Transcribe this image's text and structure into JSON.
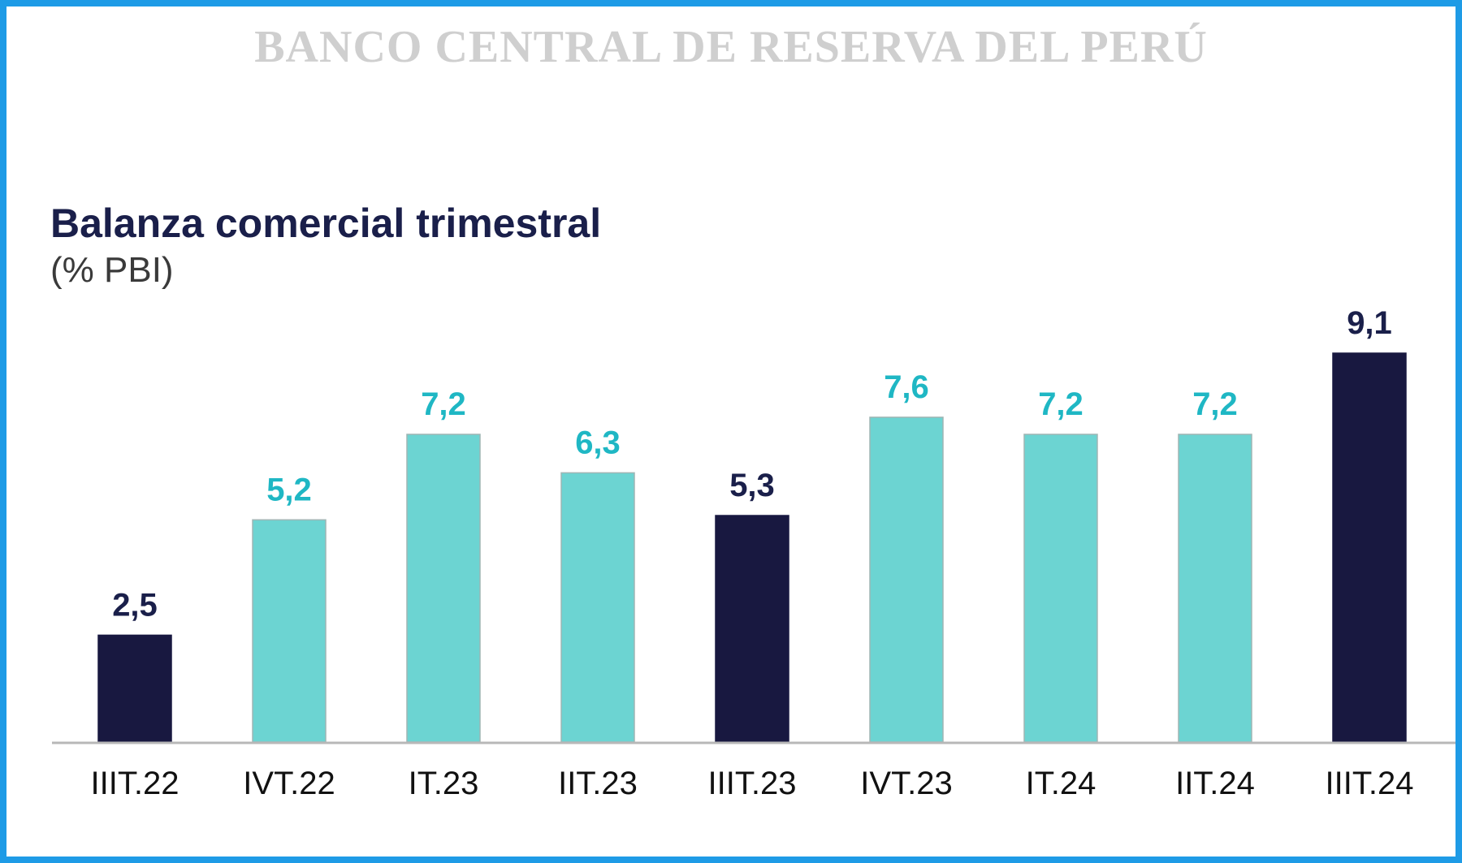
{
  "header": {
    "organization": "BANCO CENTRAL DE RESERVA DEL PERÚ"
  },
  "colors": {
    "frame_border": "#1e9be6",
    "highlight_bar": "#181840",
    "regular_bar": "#6cd4d2",
    "highlight_label": "#1a1f4a",
    "regular_label": "#1fb7c4",
    "axis_line": "#b8b8b8"
  },
  "chart_data": {
    "type": "bar",
    "title": "Balanza comercial trimestral",
    "subtitle": "(% PBI)",
    "categories": [
      "IIIT.22",
      "IVT.22",
      "IT.23",
      "IIT.23",
      "IIIT.23",
      "IVT.23",
      "IT.24",
      "IIT.24",
      "IIIT.24"
    ],
    "values": [
      2.5,
      5.2,
      7.2,
      6.3,
      5.3,
      7.6,
      7.2,
      7.2,
      9.1
    ],
    "value_labels": [
      "2,5",
      "5,2",
      "7,2",
      "6,3",
      "5,3",
      "7,6",
      "7,2",
      "7,2",
      "9,1"
    ],
    "highlighted": [
      true,
      false,
      false,
      false,
      true,
      false,
      false,
      false,
      true
    ],
    "xlabel": "",
    "ylabel": "",
    "ylim": [
      0,
      9.1
    ],
    "grid": false,
    "legend": "none"
  }
}
